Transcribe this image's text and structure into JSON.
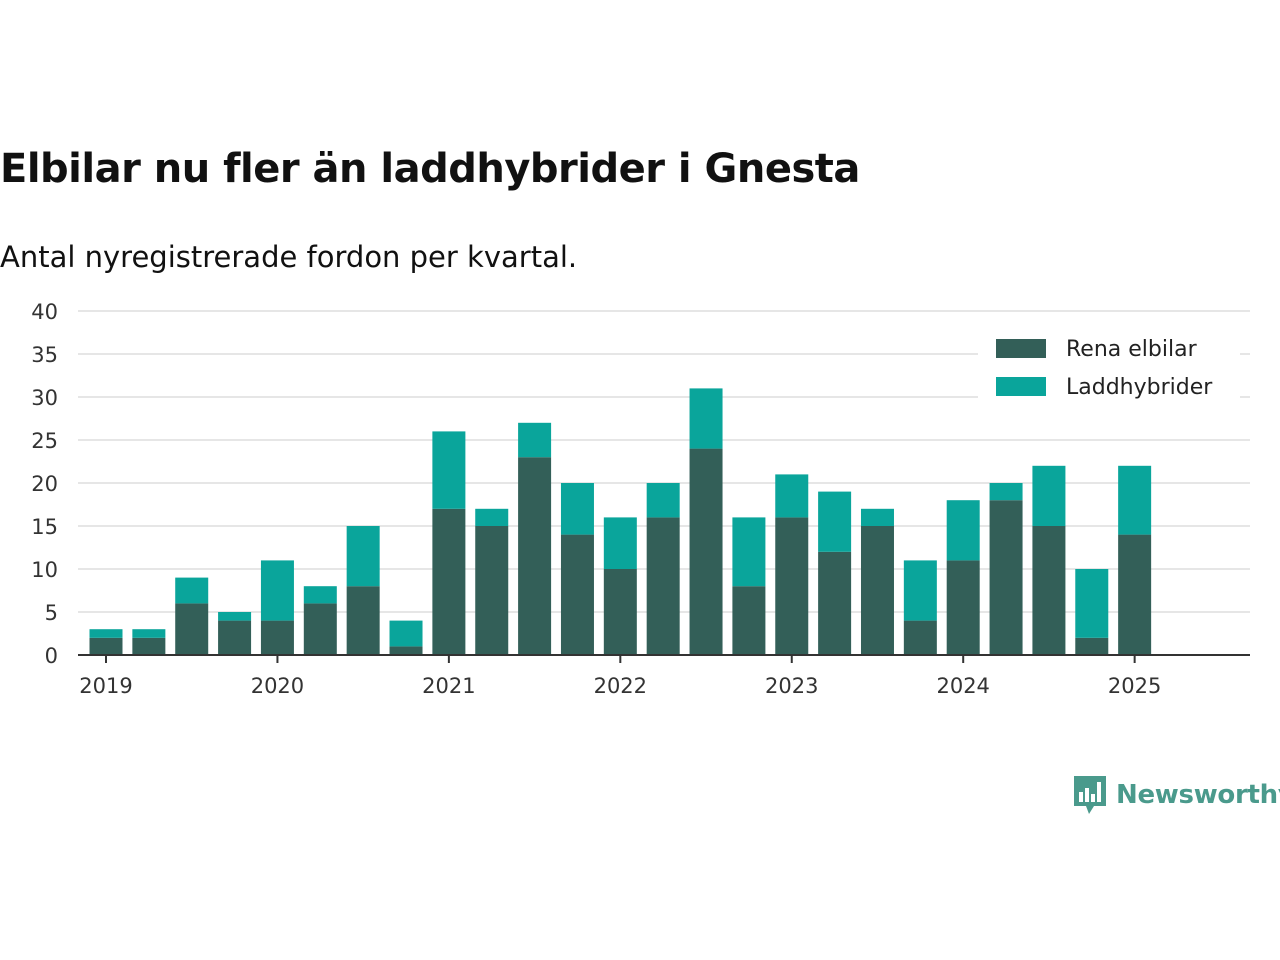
{
  "colors": {
    "rena_elbilar": "#335f58",
    "laddhybrider": "#0aa59b",
    "grid": "#dddddd",
    "axis": "#333333",
    "brand": "#4a9a8c"
  },
  "brand": {
    "name": "Newsworthy",
    "icon": "bar-chart-speech-bubble-icon"
  },
  "chart_data": {
    "type": "bar",
    "stacked": true,
    "title": "Elbilar nu fler än laddhybrider i Gnesta",
    "subtitle": "Antal nyregistrerade fordon per kvartal.",
    "xlabel": "",
    "ylabel": "",
    "ylim": [
      0,
      40
    ],
    "yticks": [
      0,
      5,
      10,
      15,
      20,
      25,
      30,
      35,
      40
    ],
    "grid": true,
    "legend_position": "top-right",
    "x_tick_labels": [
      "2019",
      "2020",
      "2021",
      "2022",
      "2023",
      "2024",
      "2025"
    ],
    "categories": [
      "2019 Q1",
      "2019 Q2",
      "2019 Q3",
      "2019 Q4",
      "2020 Q1",
      "2020 Q2",
      "2020 Q3",
      "2020 Q4",
      "2021 Q1",
      "2021 Q2",
      "2021 Q3",
      "2021 Q4",
      "2022 Q1",
      "2022 Q2",
      "2022 Q3",
      "2022 Q4",
      "2023 Q1",
      "2023 Q2",
      "2023 Q3",
      "2023 Q4",
      "2024 Q1",
      "2024 Q2",
      "2024 Q3",
      "2024 Q4",
      "2025 Q1",
      "2025 Q2"
    ],
    "series": [
      {
        "name": "Rena elbilar",
        "color": "#335f58",
        "values": [
          2,
          2,
          6,
          4,
          4,
          6,
          8,
          1,
          17,
          15,
          23,
          14,
          10,
          16,
          24,
          8,
          16,
          12,
          15,
          4,
          11,
          18,
          15,
          2,
          14,
          0
        ]
      },
      {
        "name": "Laddhybrider",
        "color": "#0aa59b",
        "values": [
          1,
          1,
          3,
          1,
          7,
          2,
          7,
          3,
          9,
          2,
          4,
          6,
          6,
          4,
          7,
          8,
          5,
          7,
          2,
          7,
          7,
          2,
          7,
          8,
          8,
          0
        ]
      }
    ]
  }
}
